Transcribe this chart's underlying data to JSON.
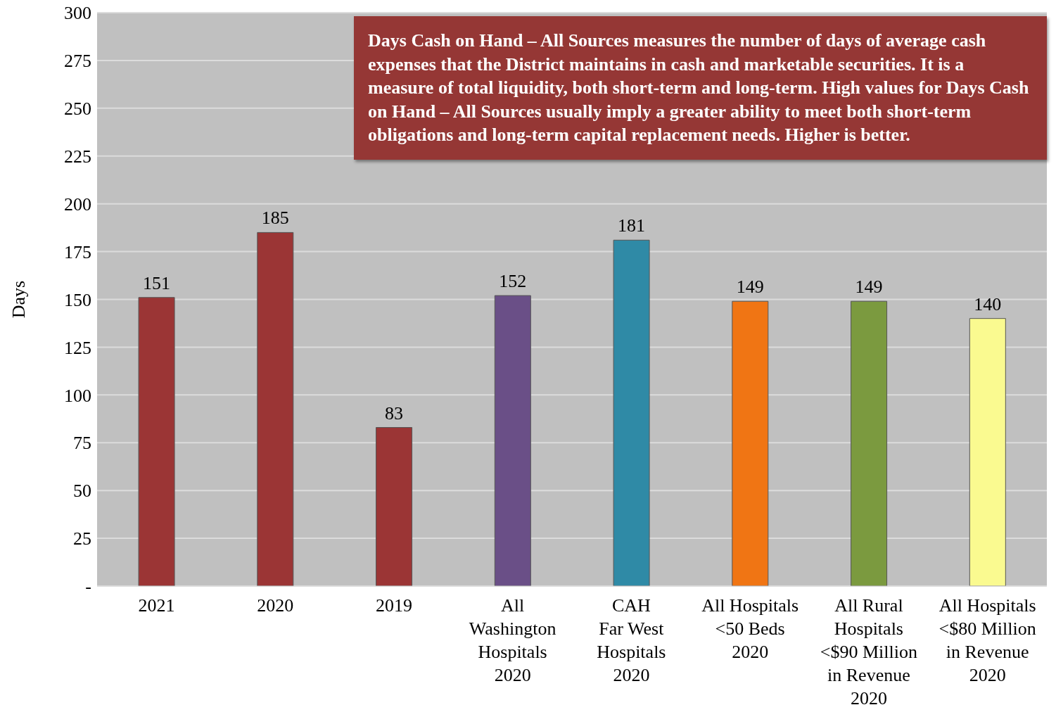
{
  "chart_data": {
    "type": "bar",
    "ylabel": "Days",
    "categories": [
      "2021",
      "2020",
      "2019",
      "All\nWashington\nHospitals\n2020",
      "CAH\nFar West\nHospitals\n2020",
      "All Hospitals\n<50 Beds\n2020",
      "All Rural\nHospitals\n<$90 Million\nin Revenue\n2020",
      "All Hospitals\n<$80 Million\nin Revenue\n2020"
    ],
    "values": [
      151,
      185,
      83,
      152,
      181,
      149,
      149,
      140
    ],
    "colors": [
      "#9b3535",
      "#9b3535",
      "#9b3535",
      "#6a4f87",
      "#2f8aa6",
      "#f07514",
      "#7b9a3f",
      "#fafa90"
    ],
    "ylim": [
      0,
      300
    ],
    "yticks": [
      {
        "value": 0,
        "label": "-"
      },
      25,
      50,
      75,
      100,
      125,
      150,
      175,
      200,
      225,
      250,
      275,
      300
    ],
    "grid": "y",
    "data_labels": true,
    "annotations": [
      "Days Cash on Hand – All Sources measures the number of days of average cash expenses that the District maintains in cash and marketable securities. It is a measure of total liquidity, both short-term and long-term. High values for Days Cash on Hand – All Sources usually imply a greater ability to meet both short-term obligations and long-term capital replacement needs. Higher is better."
    ]
  }
}
